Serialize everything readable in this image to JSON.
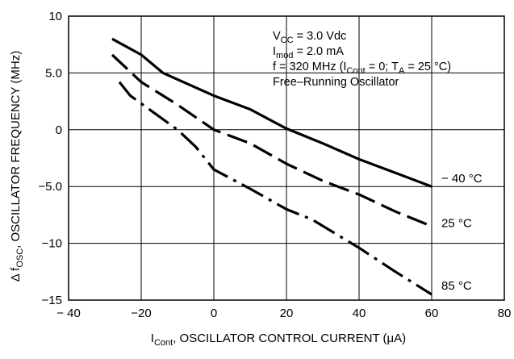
{
  "chart_data": {
    "type": "line",
    "x_ticks": [
      "− 40",
      "−20",
      "0",
      "20",
      "40",
      "60",
      "80"
    ],
    "y_ticks": [
      "10",
      "5.0",
      "0",
      "−5.0",
      "−10",
      "−15"
    ],
    "xlim": [
      -40,
      80
    ],
    "ylim": [
      -15,
      10
    ],
    "grid": true,
    "xlabel": {
      "main": "I",
      "sub": "Cont",
      "rest": ", OSCILLATOR CONTROL CURRENT (μA)"
    },
    "ylabel": {
      "pre": "Δ f",
      "sub": "OSC",
      "rest": ", OSCILLATOR FREQUENCY (MHz)"
    },
    "notes": [
      {
        "parts": [
          {
            "t": "V"
          },
          {
            "t": "CC",
            "sub": true
          },
          {
            "t": " = 3.0 Vdc"
          }
        ]
      },
      {
        "parts": [
          {
            "t": "I"
          },
          {
            "t": "mod",
            "sub": true
          },
          {
            "t": " = 2.0 mA"
          }
        ]
      },
      {
        "parts": [
          {
            "t": "f = 320 MHz (I"
          },
          {
            "t": "Cont",
            "sub": true
          },
          {
            "t": " = 0; T"
          },
          {
            "t": "A",
            "sub": true
          },
          {
            "t": " = 25 °C)"
          }
        ]
      },
      {
        "parts": [
          {
            "t": "Free–Running Oscillator"
          }
        ]
      }
    ],
    "series": [
      {
        "name": "− 40 °C",
        "line_style": "solid",
        "x": [
          -28,
          -20,
          -14,
          0,
          10,
          20,
          30,
          40,
          50,
          60
        ],
        "y": [
          8.0,
          6.6,
          5.0,
          3.0,
          1.8,
          0.1,
          -1.2,
          -2.6,
          -3.8,
          -5.0
        ]
      },
      {
        "name": "25 °C",
        "line_style": "dash",
        "x": [
          -28,
          -20,
          -10,
          0,
          10,
          20,
          30,
          40,
          50,
          60
        ],
        "y": [
          6.6,
          4.2,
          2.2,
          0.0,
          -1.2,
          -3.0,
          -4.5,
          -5.7,
          -7.2,
          -8.5
        ]
      },
      {
        "name": "85 °C",
        "line_style": "dashdot",
        "x": [
          -26,
          -23,
          -10,
          -5,
          0,
          10,
          20,
          27,
          40,
          50,
          60
        ],
        "y": [
          4.2,
          3.0,
          0.0,
          -1.5,
          -3.5,
          -5.2,
          -7.0,
          -7.9,
          -10.4,
          -12.5,
          -14.5
        ]
      }
    ]
  }
}
